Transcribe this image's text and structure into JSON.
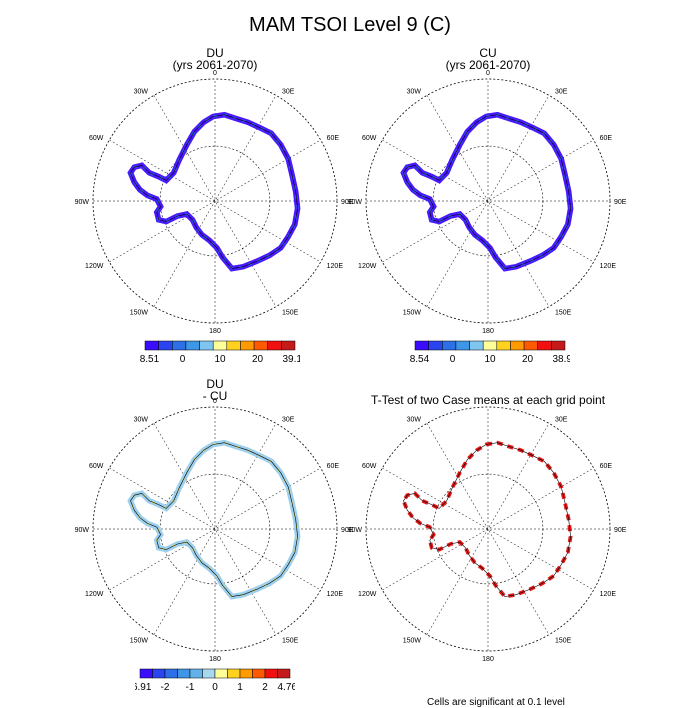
{
  "title": "MAM TSOI Level 9 (C)",
  "panels": [
    {
      "id": "du",
      "title_line1": "DU",
      "title_line2": "(yrs 2061-2070)"
    },
    {
      "id": "cu",
      "title_line1": "CU",
      "title_line2": "(yrs 2061-2070)"
    },
    {
      "id": "diff",
      "title_line1": "DU",
      "title_line2": "- CU"
    },
    {
      "id": "ttest",
      "title_line1": "T-Test of two Case means at each grid point",
      "title_line2": ""
    }
  ],
  "map_labels": {
    "top": "0",
    "bottom": "180",
    "left": "90W",
    "right": "90E",
    "tl30": "30W",
    "tr30": "30E",
    "tl60": "60W",
    "tr60": "60E",
    "bl120": "120W",
    "br120": "120E",
    "bl150": "150W",
    "br150": "150E"
  },
  "colorbars": {
    "du": {
      "colors": [
        "#3a0dff",
        "#2a45ef",
        "#2d6fe6",
        "#3d96e6",
        "#7ec6ef",
        "#ffff9a",
        "#ffd21f",
        "#ff9a00",
        "#ff5a00",
        "#f01010",
        "#c41a1a"
      ],
      "labels": [
        "-38.51",
        "0",
        "10",
        "20",
        "39.19"
      ]
    },
    "cu": {
      "colors": [
        "#3a0dff",
        "#2a45ef",
        "#2d6fe6",
        "#3d96e6",
        "#7ec6ef",
        "#ffff9a",
        "#ffd21f",
        "#ff9a00",
        "#ff5a00",
        "#f01010",
        "#c41a1a"
      ],
      "labels": [
        "-38.54",
        "0",
        "10",
        "20",
        "38.92"
      ]
    },
    "diff": {
      "colors": [
        "#3a0dff",
        "#2a45ef",
        "#2d6fe6",
        "#3d96e6",
        "#63b1ea",
        "#a8d8f0",
        "#ffff9a",
        "#ffd21f",
        "#ff9a00",
        "#ff5a00",
        "#f01010",
        "#c41a1a"
      ],
      "labels": [
        "-6.91",
        "-2",
        "-1",
        "0",
        "1",
        "2",
        "4.764"
      ]
    }
  },
  "footer": "Cells are significant at 0.1 level"
}
